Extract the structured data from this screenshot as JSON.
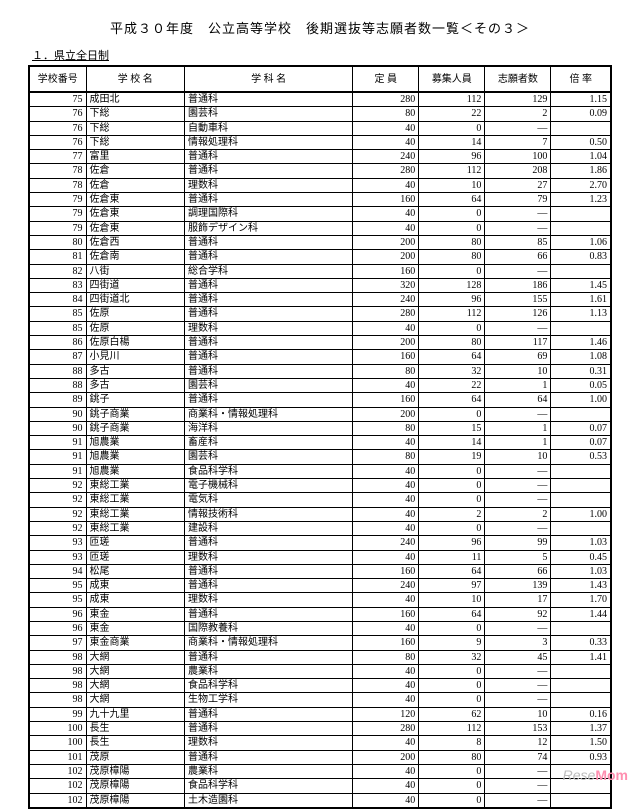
{
  "title": "平成３０年度　公立高等学校　後期選抜等志願者数一覧＜その３＞",
  "subtitle": "１．県立全日制",
  "columns": [
    "学校番号",
    "学 校 名",
    "学 科 名",
    "定 員",
    "募集人員",
    "志願者数",
    "倍 率"
  ],
  "rows": [
    [
      "75",
      "成田北",
      "普通科",
      "280",
      "112",
      "129",
      "1.15"
    ],
    [
      "76",
      "下総",
      "園芸科",
      "80",
      "22",
      "2",
      "0.09"
    ],
    [
      "76",
      "下総",
      "自動車科",
      "40",
      "0",
      "—",
      ""
    ],
    [
      "76",
      "下総",
      "情報処理科",
      "40",
      "14",
      "7",
      "0.50"
    ],
    [
      "77",
      "富里",
      "普通科",
      "240",
      "96",
      "100",
      "1.04"
    ],
    [
      "78",
      "佐倉",
      "普通科",
      "280",
      "112",
      "208",
      "1.86"
    ],
    [
      "78",
      "佐倉",
      "理数科",
      "40",
      "10",
      "27",
      "2.70"
    ],
    [
      "79",
      "佐倉東",
      "普通科",
      "160",
      "64",
      "79",
      "1.23"
    ],
    [
      "79",
      "佐倉東",
      "調理国際科",
      "40",
      "0",
      "—",
      ""
    ],
    [
      "79",
      "佐倉東",
      "服飾デザイン科",
      "40",
      "0",
      "—",
      ""
    ],
    [
      "80",
      "佐倉西",
      "普通科",
      "200",
      "80",
      "85",
      "1.06"
    ],
    [
      "81",
      "佐倉南",
      "普通科",
      "200",
      "80",
      "66",
      "0.83"
    ],
    [
      "82",
      "八街",
      "総合学科",
      "160",
      "0",
      "—",
      ""
    ],
    [
      "83",
      "四街道",
      "普通科",
      "320",
      "128",
      "186",
      "1.45"
    ],
    [
      "84",
      "四街道北",
      "普通科",
      "240",
      "96",
      "155",
      "1.61"
    ],
    [
      "85",
      "佐原",
      "普通科",
      "280",
      "112",
      "126",
      "1.13"
    ],
    [
      "85",
      "佐原",
      "理数科",
      "40",
      "0",
      "—",
      ""
    ],
    [
      "86",
      "佐原白楊",
      "普通科",
      "200",
      "80",
      "117",
      "1.46"
    ],
    [
      "87",
      "小見川",
      "普通科",
      "160",
      "64",
      "69",
      "1.08"
    ],
    [
      "88",
      "多古",
      "普通科",
      "80",
      "32",
      "10",
      "0.31"
    ],
    [
      "88",
      "多古",
      "園芸科",
      "40",
      "22",
      "1",
      "0.05"
    ],
    [
      "89",
      "銚子",
      "普通科",
      "160",
      "64",
      "64",
      "1.00"
    ],
    [
      "90",
      "銚子商業",
      "商業科・情報処理科",
      "200",
      "0",
      "—",
      ""
    ],
    [
      "90",
      "銚子商業",
      "海洋科",
      "80",
      "15",
      "1",
      "0.07"
    ],
    [
      "91",
      "旭農業",
      "畜産科",
      "40",
      "14",
      "1",
      "0.07"
    ],
    [
      "91",
      "旭農業",
      "園芸科",
      "80",
      "19",
      "10",
      "0.53"
    ],
    [
      "91",
      "旭農業",
      "食品科学科",
      "40",
      "0",
      "—",
      ""
    ],
    [
      "92",
      "東総工業",
      "電子機械科",
      "40",
      "0",
      "—",
      ""
    ],
    [
      "92",
      "東総工業",
      "電気科",
      "40",
      "0",
      "—",
      ""
    ],
    [
      "92",
      "東総工業",
      "情報技術科",
      "40",
      "2",
      "2",
      "1.00"
    ],
    [
      "92",
      "東総工業",
      "建設科",
      "40",
      "0",
      "—",
      ""
    ],
    [
      "93",
      "匝瑳",
      "普通科",
      "240",
      "96",
      "99",
      "1.03"
    ],
    [
      "93",
      "匝瑳",
      "理数科",
      "40",
      "11",
      "5",
      "0.45"
    ],
    [
      "94",
      "松尾",
      "普通科",
      "160",
      "64",
      "66",
      "1.03"
    ],
    [
      "95",
      "成東",
      "普通科",
      "240",
      "97",
      "139",
      "1.43"
    ],
    [
      "95",
      "成東",
      "理数科",
      "40",
      "10",
      "17",
      "1.70"
    ],
    [
      "96",
      "東金",
      "普通科",
      "160",
      "64",
      "92",
      "1.44"
    ],
    [
      "96",
      "東金",
      "国際教養科",
      "40",
      "0",
      "—",
      ""
    ],
    [
      "97",
      "東金商業",
      "商業科・情報処理科",
      "160",
      "9",
      "3",
      "0.33"
    ],
    [
      "98",
      "大網",
      "普通科",
      "80",
      "32",
      "45",
      "1.41"
    ],
    [
      "98",
      "大網",
      "農業科",
      "40",
      "0",
      "—",
      ""
    ],
    [
      "98",
      "大網",
      "食品科学科",
      "40",
      "0",
      "—",
      ""
    ],
    [
      "98",
      "大網",
      "生物工学科",
      "40",
      "0",
      "—",
      ""
    ],
    [
      "99",
      "九十九里",
      "普通科",
      "120",
      "62",
      "10",
      "0.16"
    ],
    [
      "100",
      "長生",
      "普通科",
      "280",
      "112",
      "153",
      "1.37"
    ],
    [
      "100",
      "長生",
      "理数科",
      "40",
      "8",
      "12",
      "1.50"
    ],
    [
      "101",
      "茂原",
      "普通科",
      "200",
      "80",
      "74",
      "0.93"
    ],
    [
      "102",
      "茂原樟陽",
      "農業科",
      "40",
      "0",
      "—",
      ""
    ],
    [
      "102",
      "茂原樟陽",
      "食品科学科",
      "40",
      "0",
      "—",
      ""
    ],
    [
      "102",
      "茂原樟陽",
      "土木造園科",
      "40",
      "0",
      "—",
      ""
    ]
  ],
  "watermark_prefix": "Rese",
  "watermark_suffix": "Mom"
}
